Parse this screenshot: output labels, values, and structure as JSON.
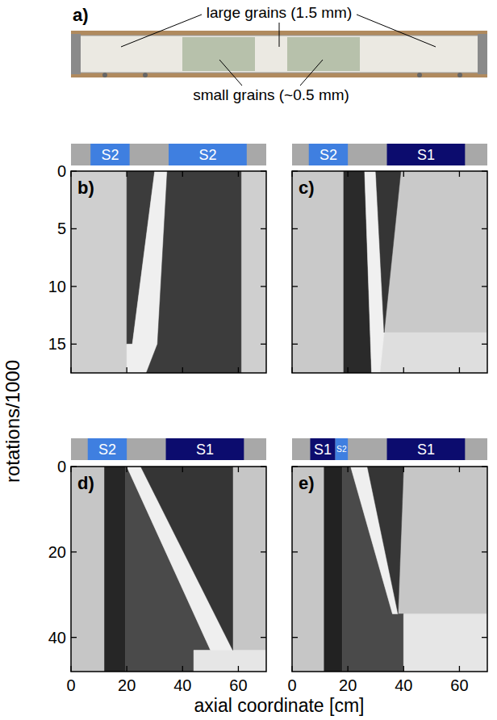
{
  "photo": {
    "title": "a)",
    "top_label": "large grains (1.5 mm)",
    "bottom_label": "small grains (~0.5 mm)"
  },
  "axis_titles": {
    "x": "axial coordinate [cm]",
    "y": "rotations/1000"
  },
  "chart_data": [
    {
      "type": "space-time",
      "title": "b)",
      "color": "#cfcfcf",
      "xlim": [
        0,
        70
      ],
      "xticks": [
        0,
        20,
        40,
        60
      ],
      "ylim": [
        0,
        17.5
      ],
      "yticks": [
        0,
        5,
        10,
        15
      ],
      "tick_labels": "y",
      "segments": [
        {
          "name": "S2",
          "start": 7,
          "end": 21,
          "color": "#3f7fe0"
        },
        {
          "name": "S2",
          "start": 35,
          "end": 63,
          "color": "#3f7fe0"
        }
      ],
      "series": [
        {
          "type": "area",
          "color": "#3c3c3c",
          "x": [
            20,
            30,
            22,
            20
          ],
          "values": [
            0,
            0,
            15,
            15
          ]
        },
        {
          "type": "area",
          "color": "#efefef",
          "x": [
            30,
            34.5,
            31,
            27,
            20,
            20,
            22
          ],
          "values": [
            0,
            0,
            15,
            17.5,
            17.5,
            15,
            15
          ]
        },
        {
          "type": "area",
          "color": "#3c3c3c",
          "x": [
            34.5,
            61,
            61,
            27,
            31
          ],
          "values": [
            0,
            0,
            17.5,
            17.5,
            15
          ]
        }
      ]
    },
    {
      "type": "space-time",
      "title": "c)",
      "color": "#c9c9c9",
      "xlim": [
        0,
        70
      ],
      "xticks": [
        0,
        20,
        40,
        60
      ],
      "ylim": [
        0,
        17.5
      ],
      "yticks": [
        0,
        5,
        10,
        15
      ],
      "tick_labels": false,
      "segments": [
        {
          "name": "S2",
          "start": 6,
          "end": 20,
          "color": "#3f7fe0"
        },
        {
          "name": "S1",
          "start": 34,
          "end": 62,
          "color": "#0c0c6e"
        }
      ],
      "series": [
        {
          "type": "area",
          "color": "#2a2a2a",
          "x": [
            18.5,
            26,
            28.5,
            18.5
          ],
          "values": [
            0,
            0,
            17.5,
            17.5
          ]
        },
        {
          "type": "area",
          "color": "#dedede",
          "x": [
            33,
            70,
            70,
            31.5
          ],
          "values": [
            14,
            14,
            17.5,
            17.5
          ]
        },
        {
          "type": "area",
          "color": "#f0f0f0",
          "x": [
            26,
            30,
            33,
            31.5,
            28.5
          ],
          "values": [
            0,
            0,
            14,
            17.5,
            17.5
          ]
        },
        {
          "type": "area",
          "color": "#353535",
          "x": [
            30,
            39,
            33
          ],
          "values": [
            0,
            0,
            14
          ]
        }
      ]
    },
    {
      "type": "space-time",
      "title": "d)",
      "color": "#c6c6c6",
      "xlim": [
        0,
        70
      ],
      "xticks": [
        0,
        20,
        40,
        60
      ],
      "ylim": [
        0,
        48
      ],
      "yticks": [
        0,
        20,
        40
      ],
      "segments": [
        {
          "name": "S2",
          "start": 6,
          "end": 20,
          "color": "#3f7fe0"
        },
        {
          "name": "S1",
          "start": 34,
          "end": 62,
          "color": "#0c0c6e"
        }
      ],
      "series": [
        {
          "type": "area",
          "color": "#262626",
          "x": [
            12,
            19.5,
            19.5,
            12
          ],
          "values": [
            0,
            0,
            48,
            48
          ]
        },
        {
          "type": "area",
          "color": "#4a4a4a",
          "x": [
            19.5,
            20,
            50,
            44,
            44,
            19.5
          ],
          "values": [
            0,
            0,
            43,
            43,
            48,
            48
          ]
        },
        {
          "type": "area",
          "color": "#e6e6e6",
          "x": [
            44,
            70,
            70,
            44
          ],
          "values": [
            43,
            43,
            48,
            48
          ]
        },
        {
          "type": "area",
          "color": "#efefef",
          "x": [
            20,
            25,
            58,
            50
          ],
          "values": [
            0,
            0,
            43,
            43
          ]
        },
        {
          "type": "area",
          "color": "#353535",
          "x": [
            25,
            58,
            58
          ],
          "values": [
            0,
            0,
            43
          ]
        }
      ]
    },
    {
      "type": "space-time",
      "title": "e)",
      "color": "#c6c6c6",
      "xlim": [
        0,
        70
      ],
      "xticks": [
        0,
        20,
        40,
        60
      ],
      "ylim": [
        0,
        48
      ],
      "yticks": [
        0,
        20,
        40
      ],
      "tick_labels": "x",
      "segments": [
        {
          "name": "S1",
          "start": 6.5,
          "end": 15.5,
          "color": "#0c0c6e"
        },
        {
          "name": "S2",
          "start": 15.5,
          "end": 20,
          "color": "#3f7fe0"
        },
        {
          "name": "S1",
          "start": 34,
          "end": 62,
          "color": "#0c0c6e"
        }
      ],
      "series": [
        {
          "type": "area",
          "color": "#222222",
          "x": [
            11.5,
            18,
            18,
            11.5
          ],
          "values": [
            0,
            0,
            48,
            48
          ]
        },
        {
          "type": "area",
          "color": "#4a4a4a",
          "x": [
            18,
            21,
            36,
            40,
            40,
            18
          ],
          "values": [
            0,
            0,
            34.5,
            34.5,
            48,
            48
          ]
        },
        {
          "type": "area",
          "color": "#e6e6e6",
          "x": [
            40,
            70,
            70,
            40
          ],
          "values": [
            34.5,
            34.5,
            48,
            48
          ]
        },
        {
          "type": "area",
          "color": "#efefef",
          "x": [
            21,
            27,
            38,
            36
          ],
          "values": [
            0,
            0,
            34.5,
            34.5
          ]
        },
        {
          "type": "area",
          "color": "#353535",
          "x": [
            27,
            40,
            38
          ],
          "values": [
            0,
            0,
            34.5
          ]
        }
      ]
    }
  ]
}
